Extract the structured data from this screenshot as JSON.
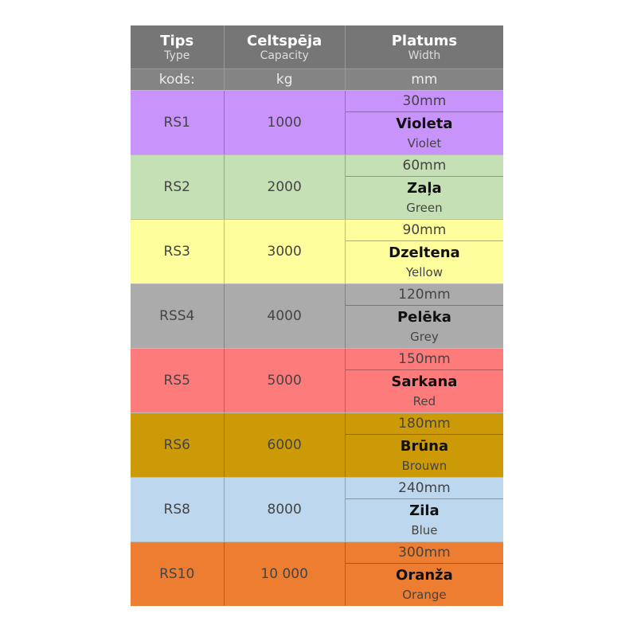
{
  "header": {
    "col1": {
      "title": "Tips",
      "subtitle": "Type",
      "unit": "kods:"
    },
    "col2": {
      "title": "Celtspēja",
      "subtitle": "Capacity",
      "unit": "kg"
    },
    "col3": {
      "title": "Platums",
      "subtitle": "Width",
      "unit": "mm"
    }
  },
  "rows": [
    {
      "type": "RS1",
      "capacity": "1000",
      "width": "30mm",
      "color_lv": "Violeta",
      "color_en": "Violet",
      "bg": "#c993fc"
    },
    {
      "type": "RS2",
      "capacity": "2000",
      "width": "60mm",
      "color_lv": "Zaļa",
      "color_en": "Green",
      "bg": "#c5e0b4"
    },
    {
      "type": "RS3",
      "capacity": "3000",
      "width": "90mm",
      "color_lv": "Dzeltena",
      "color_en": "Yellow",
      "bg": "#fefe9c"
    },
    {
      "type": "RSS4",
      "capacity": "4000",
      "width": "120mm",
      "color_lv": "Pelēka",
      "color_en": "Grey",
      "bg": "#ababab"
    },
    {
      "type": "RS5",
      "capacity": "5000",
      "width": "150mm",
      "color_lv": "Sarkana",
      "color_en": "Red",
      "bg": "#fe7b7b"
    },
    {
      "type": "RS6",
      "capacity": "6000",
      "width": "180mm",
      "color_lv": "Brūna",
      "color_en": "Brouwn",
      "bg": "#cc9a06"
    },
    {
      "type": "RS8",
      "capacity": "8000",
      "width": "240mm",
      "color_lv": "Zila",
      "color_en": "Blue",
      "bg": "#bdd7ee"
    },
    {
      "type": "RS10",
      "capacity": "10 000",
      "width": "300mm",
      "color_lv": "Oranža",
      "color_en": "Orange",
      "bg": "#ed7d31"
    }
  ]
}
